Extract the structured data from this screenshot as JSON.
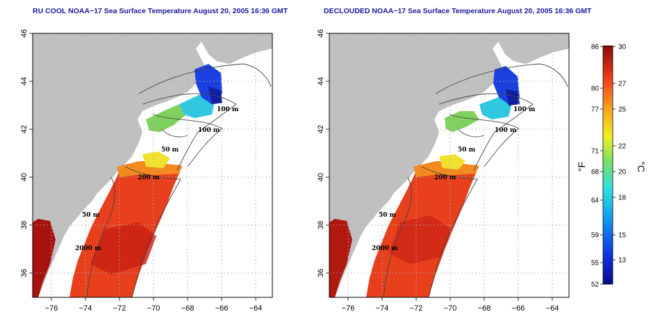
{
  "panels": [
    {
      "title": "RU COOL NOAA−17 Sea Surface Temperature August 20, 2005 16:36 GMT",
      "contour_labels": [
        "100 m",
        "100 m",
        "50 m",
        "200 m",
        "50 m",
        "2000 m"
      ]
    },
    {
      "title": "DECLOUDED NOAA−17 Sea Surface Temperature August 20, 2005 16:36 GMT",
      "contour_labels": [
        "100 m",
        "100 m",
        "50 m",
        "200 m",
        "50 m",
        "2000 m"
      ]
    }
  ],
  "axes": {
    "lon_ticks": [
      "−76",
      "−74",
      "−72",
      "−70",
      "−68",
      "−66",
      "−64"
    ],
    "lat_ticks": [
      "46",
      "44",
      "42",
      "40",
      "38",
      "36"
    ],
    "lon_range": [
      -77.2,
      -63.0
    ],
    "lat_range": [
      35.0,
      46.0
    ]
  },
  "colorbar": {
    "fahrenheit_ticks": [
      "86",
      "80",
      "77",
      "71",
      "68",
      "64",
      "59",
      "55",
      "52"
    ],
    "celsius_ticks": [
      "30",
      "27",
      "25",
      "22",
      "20",
      "18",
      "15",
      "13"
    ],
    "fahrenheit_unit": "°F",
    "celsius_unit": "°C",
    "range_c": [
      11,
      30
    ]
  },
  "colors": {
    "land": "#c0c0c0",
    "warm": "#e8401c",
    "cold": "#1a2ad0",
    "contour": "#444444",
    "title": "#1a1aa0"
  }
}
